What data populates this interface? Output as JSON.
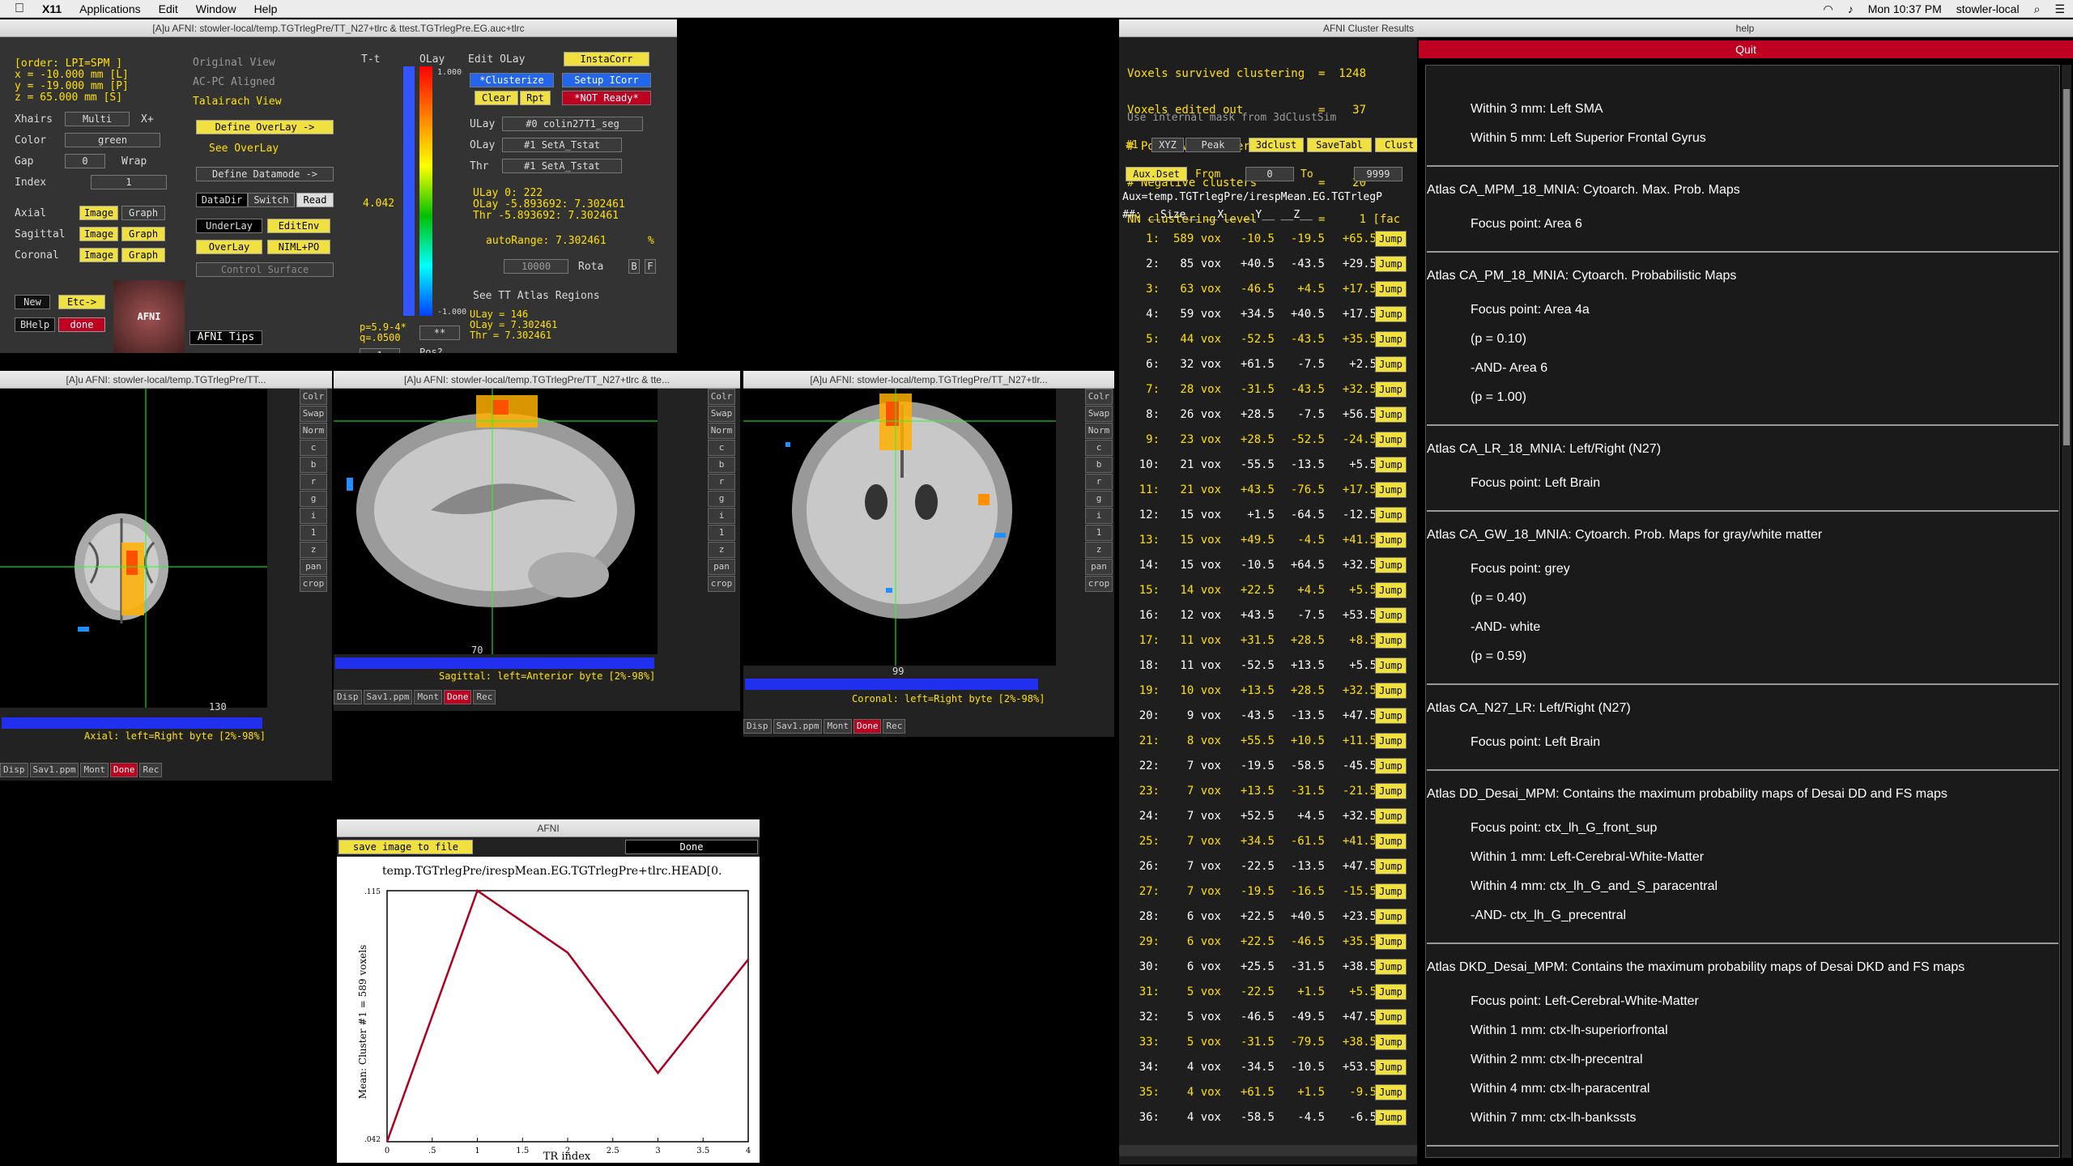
{
  "menubar": {
    "app": "X11",
    "items": [
      "Applications",
      "Edit",
      "Window",
      "Help"
    ],
    "clock": "Mon 10:37 PM",
    "user": "stowler-local"
  },
  "main": {
    "title": "[A]u AFNI: stowler-local/temp.TGTrlegPre/TT_N27+tlrc & ttest.TGTrlegPre.EG.auc+tlrc",
    "order": "[order: LPI=SPM  ]",
    "x": "x =  -10.000 mm [L]",
    "y": "y =  -19.000 mm [P]",
    "z": "z =   65.000 mm [S]",
    "xhairs_label": "Xhairs",
    "xhairs_val": "Multi",
    "xplus": "X+",
    "color_label": "Color",
    "color_val": "green",
    "gap_label": "Gap",
    "gap_val": "0",
    "wrap": "Wrap",
    "index_label": "Index",
    "index_val": "1",
    "views": [
      "Original View",
      "AC-PC Aligned",
      "Talairach View"
    ],
    "define_overlay": "Define OverLay ->",
    "see_overlay": "See OverLay",
    "define_datamode": "Define Datamode ->",
    "datadir": "DataDir",
    "switch": "Switch",
    "read": "Read",
    "underlay": "UnderLay",
    "editenv": "EditEnv",
    "overlay": "OverLay",
    "niml": "NIML+PO",
    "control_surface": "Control Surface",
    "axial": "Axial",
    "sagittal": "Sagittal",
    "coronal": "Coronal",
    "image": "Image",
    "graph": "Graph",
    "new": "New",
    "etc": "Etc->",
    "bhelp": "BHelp",
    "done": "done",
    "afni_tips": "AFNI Tips",
    "logo": "AFNI",
    "tt": "T-t",
    "olay": "OLay",
    "tval": "4.042",
    "scale_top": "1.000",
    "scale_bot": "-1.000",
    "edit_olay": "Edit OLay",
    "instacorr": "InstaCorr",
    "clusterize": "*Clusterize",
    "setup_icorr": "Setup ICorr",
    "clear": "Clear",
    "rpt": "Rpt",
    "not_ready": "*NOT Ready*",
    "ulay_lbl": "ULay",
    "ulay_val": "#0 colin27T1_seg",
    "olay_lbl": "OLay",
    "olay_val": "#1 SetA_Tstat",
    "thr_lbl": "Thr",
    "thr_val": "#1 SetA_Tstat",
    "ulay_info": "ULay        0:      222",
    "olay_info": "OLay -5.893692: 7.302461",
    "thr_info": "Thr  -5.893692: 7.302461",
    "autorange": "autoRange: 7.302461",
    "pct": "%",
    "range_val": "10000",
    "rota": "Rota",
    "b": "B",
    "f": "F",
    "p_info": "p=5.9-4*",
    "q_info": "q=.0500",
    "stars": "**",
    "see_tt": "See TT Atlas Regions",
    "pos": "Pos?",
    "one": "1",
    "ulay2": "ULay = 146",
    "olay2": "OLay = 7.302461",
    "thr2": "Thr  = 7.302461"
  },
  "axial": {
    "title": "[A]u AFNI: stowler-local/temp.TGTrlegPre/TT...",
    "slice": "130",
    "status": "Axial: left=Right byte [2%-98%]"
  },
  "sagittal": {
    "title": "[A]u AFNI: stowler-local/temp.TGTrlegPre/TT_N27+tlrc & tte...",
    "slice": "70",
    "status": "Sagittal: left=Anterior byte [2%-98%]"
  },
  "coronal": {
    "title": "[A]u AFNI: stowler-local/temp.TGTrlegPre/TT_N27+tlr...",
    "slice": "99",
    "status": "Coronal: left=Right byte [2%-98%]"
  },
  "side_buttons": [
    "Colr",
    "Swap",
    "Norm",
    "c",
    "b",
    "r",
    "g",
    "i",
    "1",
    "z",
    "pan",
    "crop"
  ],
  "view_buttons": [
    "Disp",
    "Sav1.ppm",
    "Mont",
    "Done",
    "Rec"
  ],
  "graph": {
    "title": "AFNI",
    "save": "save image to file",
    "done": "Done",
    "plot_title": "temp.TGTrlegPre/irespMean.EG.TGTrlegPre+tlrc.HEAD[0.",
    "ylabel": "Mean: Cluster #1 = 589 voxels",
    "xlabel": "TR index",
    "ytop": ".115",
    "ybot": ".042",
    "xticks": [
      ".5",
      "1",
      "1.5",
      "2",
      "2.5",
      "3",
      "3.5",
      "4"
    ],
    "x0": "0"
  },
  "chart_data": {
    "type": "line",
    "x": [
      0,
      1,
      2,
      3,
      4
    ],
    "values": [
      0.042,
      0.115,
      0.097,
      0.062,
      0.095
    ],
    "xlabel": "TR index",
    "ylabel": "Mean: Cluster #1 = 589 voxels",
    "ylim": [
      0.042,
      0.115
    ],
    "xlim": [
      0,
      4
    ]
  },
  "cluster": {
    "title": "AFNI Cluster Results",
    "header": [
      "Voxels survived clustering  =  1248",
      "Voxels edited out           =    37",
      "# Positive clusters         =    38",
      "# Negative clusters         =    20",
      "NN clustering level         =     1 [fac"
    ],
    "use_mask": "Use internal mask from 3dClustSim",
    "num": "#1",
    "xyz": "XYZ",
    "peak": "Peak",
    "3dclust": "3dclust",
    "savetabl": "SaveTabl",
    "clust": "Clust",
    "auxdset": "Aux.Dset",
    "from": "From",
    "from_val": "0",
    "to": "To",
    "to_val": "9999",
    "auxpath": "Aux=temp.TGTrlegPre/irespMean.EG.TGTrlegP",
    "colhead": "##:  __Size__   __X__   __Y__   __Z__",
    "jump": "Jump",
    "rows": [
      [
        "1:",
        "589 vox",
        "-10.5",
        "-19.5",
        "+65.5"
      ],
      [
        "2:",
        "85 vox",
        "+40.5",
        "-43.5",
        "+29.5"
      ],
      [
        "3:",
        "63 vox",
        "-46.5",
        "+4.5",
        "+17.5"
      ],
      [
        "4:",
        "59 vox",
        "+34.5",
        "+40.5",
        "+17.5"
      ],
      [
        "5:",
        "44 vox",
        "-52.5",
        "-43.5",
        "+35.5"
      ],
      [
        "6:",
        "32 vox",
        "+61.5",
        "-7.5",
        "+2.5"
      ],
      [
        "7:",
        "28 vox",
        "-31.5",
        "-43.5",
        "+32.5"
      ],
      [
        "8:",
        "26 vox",
        "+28.5",
        "-7.5",
        "+56.5"
      ],
      [
        "9:",
        "23 vox",
        "+28.5",
        "-52.5",
        "-24.5"
      ],
      [
        "10:",
        "21 vox",
        "-55.5",
        "-13.5",
        "+5.5"
      ],
      [
        "11:",
        "21 vox",
        "+43.5",
        "-76.5",
        "+17.5"
      ],
      [
        "12:",
        "15 vox",
        "+1.5",
        "-64.5",
        "-12.5"
      ],
      [
        "13:",
        "15 vox",
        "+49.5",
        "-4.5",
        "+41.5"
      ],
      [
        "14:",
        "15 vox",
        "-10.5",
        "+64.5",
        "+32.5"
      ],
      [
        "15:",
        "14 vox",
        "+22.5",
        "+4.5",
        "+5.5"
      ],
      [
        "16:",
        "12 vox",
        "+43.5",
        "-7.5",
        "+53.5"
      ],
      [
        "17:",
        "11 vox",
        "+31.5",
        "+28.5",
        "+8.5"
      ],
      [
        "18:",
        "11 vox",
        "-52.5",
        "+13.5",
        "+5.5"
      ],
      [
        "19:",
        "10 vox",
        "+13.5",
        "+28.5",
        "+32.5"
      ],
      [
        "20:",
        "9 vox",
        "-43.5",
        "-13.5",
        "+47.5"
      ],
      [
        "21:",
        "8 vox",
        "+55.5",
        "+10.5",
        "+11.5"
      ],
      [
        "22:",
        "7 vox",
        "-19.5",
        "-58.5",
        "-45.5"
      ],
      [
        "23:",
        "7 vox",
        "+13.5",
        "-31.5",
        "-21.5"
      ],
      [
        "24:",
        "7 vox",
        "+52.5",
        "+4.5",
        "+32.5"
      ],
      [
        "25:",
        "7 vox",
        "+34.5",
        "-61.5",
        "+41.5"
      ],
      [
        "26:",
        "7 vox",
        "-22.5",
        "-13.5",
        "+47.5"
      ],
      [
        "27:",
        "7 vox",
        "-19.5",
        "-16.5",
        "-15.5"
      ],
      [
        "28:",
        "6 vox",
        "+22.5",
        "+40.5",
        "+23.5"
      ],
      [
        "29:",
        "6 vox",
        "+22.5",
        "-46.5",
        "+35.5"
      ],
      [
        "30:",
        "6 vox",
        "+25.5",
        "-31.5",
        "+38.5"
      ],
      [
        "31:",
        "5 vox",
        "-22.5",
        "+1.5",
        "+5.5"
      ],
      [
        "32:",
        "5 vox",
        "-46.5",
        "-49.5",
        "+47.5"
      ],
      [
        "33:",
        "5 vox",
        "-31.5",
        "-79.5",
        "+38.5"
      ],
      [
        "34:",
        "4 vox",
        "-34.5",
        "-10.5",
        "+53.5"
      ],
      [
        "35:",
        "4 vox",
        "+61.5",
        "+1.5",
        "-9.5"
      ],
      [
        "36:",
        "4 vox",
        "-58.5",
        "-4.5",
        "-6.5"
      ]
    ]
  },
  "help": {
    "title": "help",
    "quit": "Quit",
    "lines": [
      {
        "t": "Within 3 mm: Left SMA",
        "i": 1
      },
      {
        "t": "Within 5 mm: Left Superior Frontal Gyrus",
        "i": 1
      },
      {
        "sep": true
      },
      {
        "t": "Atlas CA_MPM_18_MNIA: Cytoarch. Max. Prob. Maps",
        "i": 0
      },
      {
        "t": "Focus point: Area 6",
        "i": 1
      },
      {
        "sep": true
      },
      {
        "t": "Atlas CA_PM_18_MNIA: Cytoarch. Probabilistic Maps",
        "i": 0
      },
      {
        "t": "Focus point: Area 4a",
        "i": 1
      },
      {
        "t": "(p = 0.10)",
        "i": 1
      },
      {
        "t": "-AND- Area 6",
        "i": 1
      },
      {
        "t": "(p = 1.00)",
        "i": 1
      },
      {
        "sep": true
      },
      {
        "t": "Atlas CA_LR_18_MNIA: Left/Right (N27)",
        "i": 0
      },
      {
        "t": "Focus point: Left Brain",
        "i": 1
      },
      {
        "sep": true
      },
      {
        "t": "Atlas CA_GW_18_MNIA: Cytoarch. Prob. Maps for gray/white matter",
        "i": 0
      },
      {
        "t": "Focus point: grey",
        "i": 1
      },
      {
        "t": "(p = 0.40)",
        "i": 1
      },
      {
        "t": "-AND- white",
        "i": 1
      },
      {
        "t": "(p = 0.59)",
        "i": 1
      },
      {
        "sep": true
      },
      {
        "t": "Atlas CA_N27_LR: Left/Right (N27)",
        "i": 0
      },
      {
        "t": "Focus point: Left Brain",
        "i": 1
      },
      {
        "sep": true
      },
      {
        "t": "Atlas DD_Desai_MPM: Contains the maximum probability maps of Desai DD and FS maps",
        "i": 0
      },
      {
        "t": "Focus point: ctx_lh_G_front_sup",
        "i": 1
      },
      {
        "t": "Within 1 mm: Left-Cerebral-White-Matter",
        "i": 1
      },
      {
        "t": "Within 4 mm: ctx_lh_G_and_S_paracentral",
        "i": 1
      },
      {
        "t": "-AND- ctx_lh_G_precentral",
        "i": 1
      },
      {
        "sep": true
      },
      {
        "t": "Atlas DKD_Desai_MPM: Contains the maximum probability maps of Desai DKD and FS maps",
        "i": 0
      },
      {
        "t": "Focus point: Left-Cerebral-White-Matter",
        "i": 1
      },
      {
        "t": "Within 1 mm: ctx-lh-superiorfrontal",
        "i": 1
      },
      {
        "t": "Within 2 mm: ctx-lh-precentral",
        "i": 1
      },
      {
        "t": "Within 4 mm: ctx-lh-paracentral",
        "i": 1
      },
      {
        "t": "Within 7 mm: ctx-lh-bankssts",
        "i": 1
      },
      {
        "sep": true
      }
    ]
  }
}
